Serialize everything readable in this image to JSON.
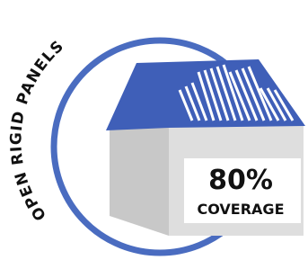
{
  "label": "OPEN RIGID PANELS",
  "stat": "80%",
  "caption": "COVERAGE"
}
